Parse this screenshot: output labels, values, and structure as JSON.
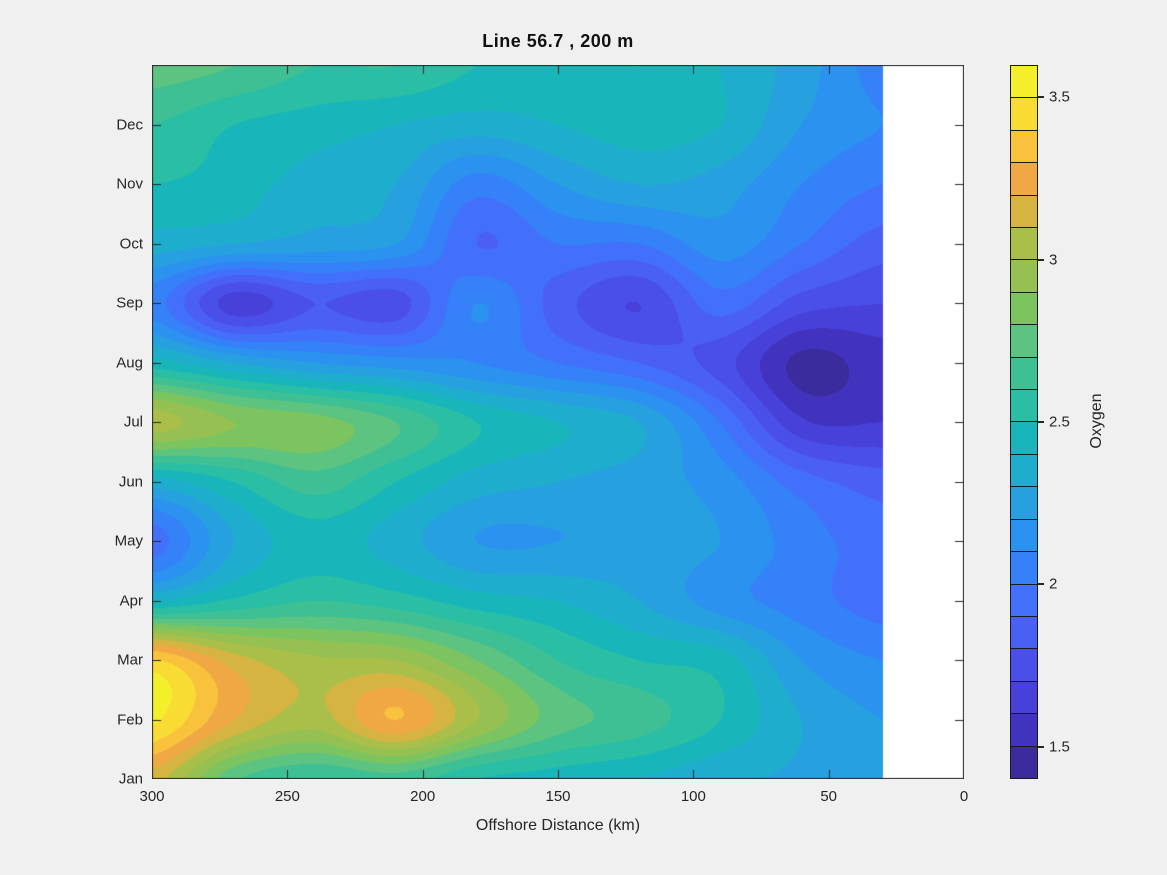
{
  "colors": {
    "figure_bg": "#f0f0f0",
    "axis_color": "#262626",
    "plot_bg": "#ffffff"
  },
  "chart_data": {
    "type": "heatmap",
    "subtype": "filled-contour",
    "title": "Line 56.7 , 200 m",
    "xlabel": "Offshore Distance (km)",
    "colorbar_label": "Oxygen",
    "x_axis": {
      "range": [
        300,
        0
      ],
      "reversed": true,
      "ticks": [
        300,
        250,
        200,
        150,
        100,
        50,
        0
      ],
      "tick_labels": [
        "300",
        "250",
        "200",
        "150",
        "100",
        "50",
        "0"
      ]
    },
    "y_axis": {
      "tick_labels": [
        "Jan",
        "Feb",
        "Mar",
        "Apr",
        "May",
        "Jun",
        "Jul",
        "Aug",
        "Sep",
        "Oct",
        "Nov",
        "Dec"
      ],
      "note_top_edge": "extends one month above Dec (wraps to Jan)"
    },
    "z_axis": {
      "label": "Oxygen",
      "min": 1.4,
      "max": 3.6,
      "contour_step": 0.1,
      "colorbar_ticks": [
        1.5,
        2,
        2.5,
        3,
        3.5
      ],
      "colorbar_tick_labels": [
        "1.5",
        "2",
        "2.5",
        "3",
        "3.5"
      ]
    },
    "data_extent_km": [
      300,
      30
    ],
    "no_data_region_km": [
      30,
      0
    ],
    "x_km": [
      300,
      270,
      240,
      210,
      180,
      150,
      120,
      90,
      60,
      30
    ],
    "grid_rows_bottom_to_top": [
      {
        "month": "Jan",
        "values": [
          3.15,
          2.72,
          2.6,
          2.65,
          2.5,
          2.45,
          2.4,
          2.32,
          2.28,
          2.2
        ]
      },
      {
        "month": "Feb",
        "values": [
          3.52,
          3.2,
          3.05,
          3.3,
          3.0,
          2.75,
          2.65,
          2.5,
          2.3,
          2.2
        ]
      },
      {
        "month": "Mar",
        "values": [
          3.42,
          3.15,
          3.02,
          3.0,
          2.8,
          2.6,
          2.5,
          2.45,
          2.2,
          2.1
        ]
      },
      {
        "month": "Apr",
        "values": [
          2.4,
          2.52,
          2.6,
          2.55,
          2.45,
          2.4,
          2.3,
          2.15,
          2.05,
          1.95
        ]
      },
      {
        "month": "May",
        "values": [
          1.95,
          2.3,
          2.45,
          2.35,
          2.2,
          2.2,
          2.25,
          2.2,
          2.05,
          1.95
        ]
      },
      {
        "month": "Jun",
        "values": [
          2.35,
          2.5,
          2.65,
          2.5,
          2.35,
          2.3,
          2.25,
          2.15,
          1.95,
          1.85
        ]
      },
      {
        "month": "Jul",
        "values": [
          3.05,
          2.9,
          2.85,
          2.7,
          2.5,
          2.4,
          2.3,
          2.0,
          1.62,
          1.6
        ]
      },
      {
        "month": "Aug",
        "values": [
          2.45,
          2.3,
          2.2,
          2.15,
          2.1,
          2.0,
          1.9,
          1.75,
          1.47,
          1.55
        ]
      },
      {
        "month": "Sep",
        "values": [
          2.05,
          1.65,
          1.8,
          1.75,
          2.1,
          1.85,
          1.7,
          1.95,
          1.75,
          1.7
        ]
      },
      {
        "month": "Oct",
        "values": [
          2.35,
          2.3,
          2.25,
          2.2,
          1.9,
          2.0,
          2.0,
          2.15,
          2.0,
          1.85
        ]
      },
      {
        "month": "Nov",
        "values": [
          2.5,
          2.45,
          2.35,
          2.3,
          2.05,
          2.2,
          2.3,
          2.25,
          2.1,
          2.0
        ]
      },
      {
        "month": "Dec",
        "values": [
          2.6,
          2.5,
          2.45,
          2.4,
          2.35,
          2.4,
          2.45,
          2.4,
          2.2,
          2.1
        ]
      },
      {
        "month": "Jan",
        "values": [
          2.75,
          2.7,
          2.6,
          2.6,
          2.5,
          2.45,
          2.5,
          2.4,
          2.25,
          2.05
        ]
      }
    ],
    "band_colors_low_to_high": [
      "#3A2C9C",
      "#4233BF",
      "#4741D9",
      "#4A4FE9",
      "#4A5FF3",
      "#4370FA",
      "#3581F8",
      "#2C92EF",
      "#26A0DF",
      "#1FADCE",
      "#18B6BA",
      "#2ABEA4",
      "#3FC094",
      "#5DC381",
      "#7CC45F",
      "#96C152",
      "#AABF4A",
      "#D5B441",
      "#F0A845",
      "#F9C23D",
      "#F8DB33",
      "#F3EF2B"
    ],
    "legend_position": "right-colorbar",
    "grid": "off"
  }
}
